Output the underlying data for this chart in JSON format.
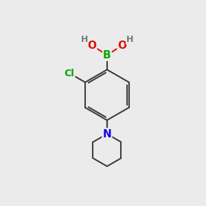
{
  "bg_color": "#ebebeb",
  "bond_color": "#3a3a3a",
  "bond_width": 1.5,
  "atom_colors": {
    "B": "#00aa00",
    "O": "#dd1100",
    "H": "#777777",
    "Cl": "#00aa00",
    "N": "#1100ee",
    "C": "#3a3a3a"
  },
  "font_size_main": 11,
  "font_size_h": 9,
  "font_size_cl": 10
}
